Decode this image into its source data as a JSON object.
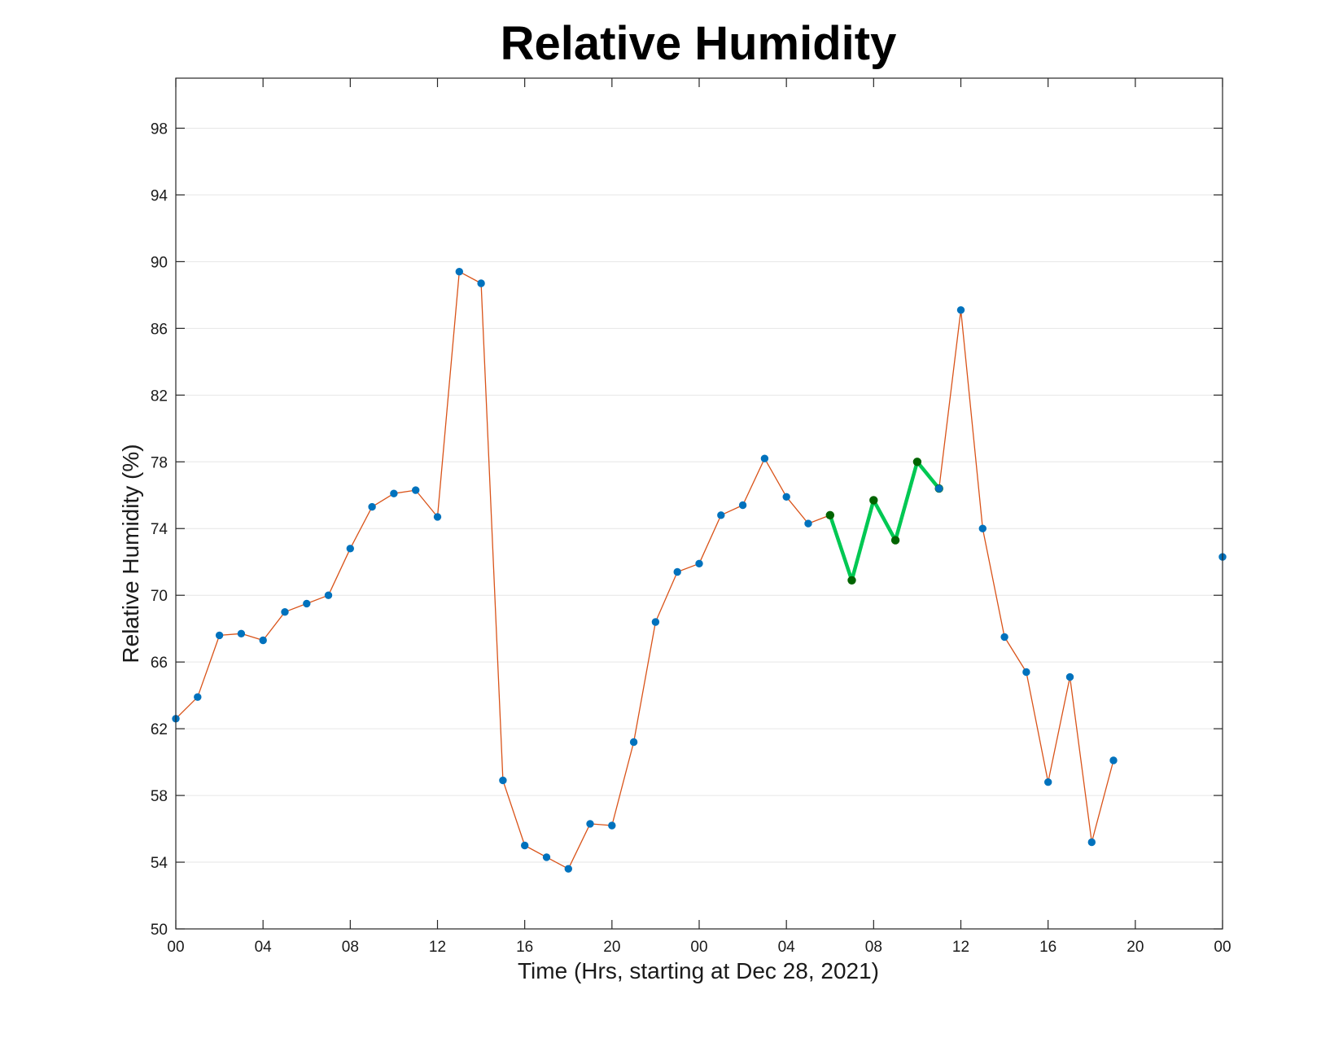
{
  "chart_data": {
    "type": "line",
    "title": "Relative Humidity",
    "xlabel": "Time (Hrs, starting at Dec 28, 2021)",
    "ylabel": "Relative Humidity (%)",
    "xlim": [
      0,
      48
    ],
    "ylim": [
      50,
      101
    ],
    "grid": "horizontal",
    "x_ticks": [
      0,
      4,
      8,
      12,
      16,
      20,
      24,
      28,
      32,
      36,
      40,
      44,
      48
    ],
    "x_tick_labels": [
      "00",
      "04",
      "08",
      "12",
      "16",
      "20",
      "00",
      "04",
      "08",
      "12",
      "16",
      "20",
      "00"
    ],
    "y_ticks": [
      50,
      54,
      58,
      62,
      66,
      70,
      74,
      78,
      82,
      86,
      90,
      94,
      98
    ],
    "y_tick_labels": [
      "50",
      "54",
      "58",
      "62",
      "66",
      "70",
      "74",
      "78",
      "82",
      "86",
      "90",
      "94",
      "98"
    ],
    "series": [
      {
        "style": "line-with-markers",
        "line_color": "#d95319",
        "marker_color": "#0072bd",
        "x": [
          0,
          1,
          2,
          3,
          4,
          5,
          6,
          7,
          8,
          9,
          10,
          11,
          12,
          13,
          14,
          15,
          16,
          17,
          18,
          19,
          20,
          21,
          22,
          23,
          24,
          25,
          26,
          27,
          28,
          29,
          30
        ],
        "y": [
          62.6,
          63.9,
          67.6,
          67.7,
          67.3,
          69.0,
          69.5,
          70.0,
          72.8,
          75.3,
          76.1,
          76.3,
          74.7,
          89.4,
          88.7,
          58.9,
          55.0,
          54.3,
          53.6,
          56.3,
          56.2,
          61.2,
          68.4,
          71.4,
          71.9,
          74.8,
          75.4,
          78.2,
          75.9,
          74.3,
          74.8
        ]
      },
      {
        "style": "highlight",
        "line_color": "#00c853",
        "marker_color": "#006400",
        "x": [
          30,
          31,
          32,
          33,
          34,
          35
        ],
        "y": [
          74.8,
          70.9,
          75.7,
          73.3,
          78.0,
          76.4
        ]
      },
      {
        "style": "line-with-markers",
        "line_color": "#d95319",
        "marker_color": "#0072bd",
        "x": [
          35,
          36,
          37,
          38,
          39,
          40,
          41,
          42,
          43
        ],
        "y": [
          76.4,
          87.1,
          74.0,
          67.5,
          65.4,
          58.8,
          65.1,
          55.2,
          60.1
        ]
      },
      {
        "style": "markers-only",
        "marker_color": "#0072bd",
        "x": [
          48
        ],
        "y": [
          72.3
        ]
      }
    ]
  }
}
